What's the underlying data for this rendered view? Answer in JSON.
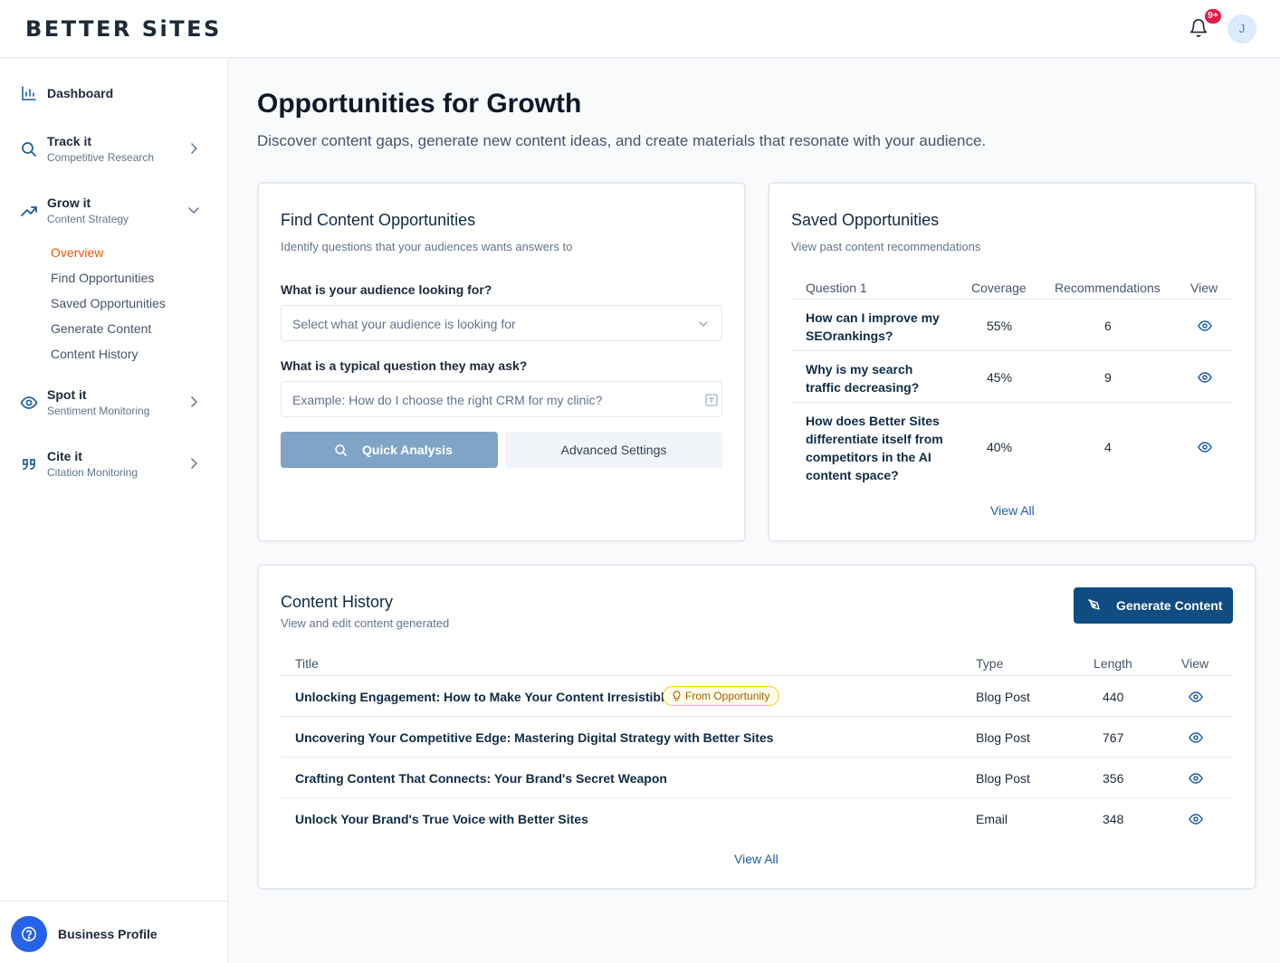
{
  "header": {
    "logo": "BETTER SiTES",
    "notification_badge": "9+",
    "avatar_initial": "J"
  },
  "sidebar": {
    "dashboard": {
      "title": "Dashboard"
    },
    "track": {
      "title": "Track it",
      "sub": "Competitive Research"
    },
    "grow": {
      "title": "Grow it",
      "sub": "Content Strategy",
      "links": [
        "Overview",
        "Find Opportunities",
        "Saved Opportunities",
        "Generate Content",
        "Content History"
      ]
    },
    "spot": {
      "title": "Spot it",
      "sub": "Sentiment Monitoring"
    },
    "cite": {
      "title": "Cite it",
      "sub": "Citation Monitoring"
    },
    "business_profile": "Business Profile"
  },
  "page": {
    "title": "Opportunities for Growth",
    "subtitle": "Discover content gaps, generate new content ideas, and create materials that resonate with your audience."
  },
  "find": {
    "title": "Find Content Opportunities",
    "subtitle": "Identify questions that your audiences wants answers to",
    "label_audience": "What is your audience looking for?",
    "select_placeholder": "Select what your audience is looking for",
    "label_question": "What is a typical question they may ask?",
    "question_placeholder": "Example: How do I choose the right CRM for my clinic?",
    "quick_label": "Quick Analysis",
    "advanced_label": "Advanced Settings"
  },
  "saved": {
    "title": "Saved Opportunities",
    "subtitle": "View past content recommendations",
    "headers": [
      "Question 1",
      "Coverage",
      "Recommendations",
      "View"
    ],
    "rows": [
      {
        "q1": "How can I improve my",
        "q2": "SEOrankings?",
        "q3": "",
        "q4": "",
        "coverage": "55%",
        "recs": "6"
      },
      {
        "q1": "Why is my search",
        "q2": "traffic decreasing?",
        "q3": "",
        "q4": "",
        "coverage": "45%",
        "recs": "9"
      },
      {
        "q1": "How does Better Sites",
        "q2": "differentiate itself from",
        "q3": "competitors in the AI",
        "q4": "content space?",
        "coverage": "40%",
        "recs": "4"
      }
    ],
    "view_all": "View All"
  },
  "history": {
    "title": "Content History",
    "subtitle": "View and edit content generated",
    "generate_label": "Generate Content",
    "headers": [
      "Title",
      "Type",
      "Length",
      "View"
    ],
    "rows": [
      {
        "title": "Unlocking Engagement: How to Make Your Content Irresistible",
        "badge": "From Opportunity",
        "type": "Blog Post",
        "length": "440"
      },
      {
        "title": "Uncovering Your Competitive Edge: Mastering Digital Strategy with Better Sites",
        "type": "Blog Post",
        "length": "767"
      },
      {
        "title": "Crafting Content That Connects: Your Brand's Secret Weapon",
        "type": "Blog Post",
        "length": "356"
      },
      {
        "title": "Unlock Your Brand's True Voice with Better Sites",
        "type": "Email",
        "length": "348"
      }
    ],
    "view_all": "View All"
  },
  "colors": {
    "accent": "#0f4c81",
    "active_link": "#ea580c",
    "link": "#1d5fa8",
    "badge": "#e11d48"
  }
}
